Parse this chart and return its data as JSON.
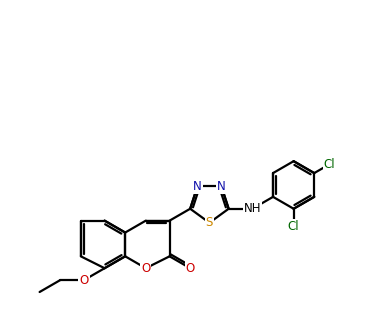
{
  "background_color": "#ffffff",
  "line_color": "#000000",
  "N_color": "#1010aa",
  "O_color": "#cc0000",
  "S_color": "#cc8800",
  "Cl_color": "#006600",
  "line_width": 1.6,
  "figsize": [
    3.85,
    3.26
  ],
  "dpi": 100,
  "xlim": [
    -0.5,
    11.5
  ],
  "ylim": [
    0.0,
    9.5
  ]
}
